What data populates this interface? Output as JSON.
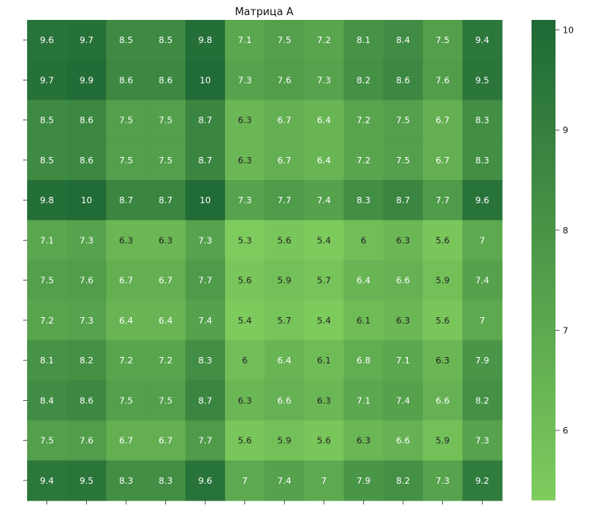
{
  "chart_data": {
    "type": "heatmap",
    "title": "Матрица A",
    "rows": 12,
    "cols": 12,
    "values": [
      [
        9.6,
        9.7,
        8.5,
        8.5,
        9.8,
        7.1,
        7.5,
        7.2,
        8.1,
        8.4,
        7.5,
        9.4
      ],
      [
        9.7,
        9.9,
        8.6,
        8.6,
        10,
        7.3,
        7.6,
        7.3,
        8.2,
        8.6,
        7.6,
        9.5
      ],
      [
        8.5,
        8.6,
        7.5,
        7.5,
        8.7,
        6.3,
        6.7,
        6.4,
        7.2,
        7.5,
        6.7,
        8.3
      ],
      [
        8.5,
        8.6,
        7.5,
        7.5,
        8.7,
        6.3,
        6.7,
        6.4,
        7.2,
        7.5,
        6.7,
        8.3
      ],
      [
        9.8,
        10,
        8.7,
        8.7,
        10,
        7.3,
        7.7,
        7.4,
        8.3,
        8.7,
        7.7,
        9.6
      ],
      [
        7.1,
        7.3,
        6.3,
        6.3,
        7.3,
        5.3,
        5.6,
        5.4,
        6,
        6.3,
        5.6,
        7
      ],
      [
        7.5,
        7.6,
        6.7,
        6.7,
        7.7,
        5.6,
        5.9,
        5.7,
        6.4,
        6.6,
        5.9,
        7.4
      ],
      [
        7.2,
        7.3,
        6.4,
        6.4,
        7.4,
        5.4,
        5.7,
        5.4,
        6.1,
        6.3,
        5.6,
        7
      ],
      [
        8.1,
        8.2,
        7.2,
        7.2,
        8.3,
        6,
        6.4,
        6.1,
        6.8,
        7.1,
        6.3,
        7.9
      ],
      [
        8.4,
        8.6,
        7.5,
        7.5,
        8.7,
        6.3,
        6.6,
        6.3,
        7.1,
        7.4,
        6.6,
        8.2
      ],
      [
        7.5,
        7.6,
        6.7,
        6.7,
        7.7,
        5.6,
        5.9,
        5.6,
        6.3,
        6.6,
        5.9,
        7.3
      ],
      [
        9.4,
        9.5,
        8.3,
        8.3,
        9.6,
        7,
        7.4,
        7,
        7.9,
        8.2,
        7.3,
        9.2
      ]
    ],
    "color_range": [
      5.3,
      10.1
    ],
    "colormap": [
      "#7fcc5e",
      "#1e6935"
    ],
    "colorbar_ticks": [
      6,
      7,
      8,
      9,
      10
    ],
    "text_color_dark": "#222222",
    "text_color_light": "#ffffff"
  }
}
